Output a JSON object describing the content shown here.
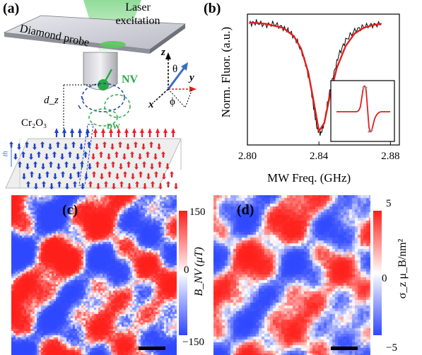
{
  "figure": {
    "panels": {
      "a": {
        "label": "(a)",
        "laser": "Laser\nexcitation",
        "probe": "Diamond probe",
        "nv": "NV",
        "dw": "DW",
        "material": "Cr₂O₃",
        "dz": "d_z",
        "th": "th",
        "axes": {
          "x": "x",
          "y": "y",
          "z": "z",
          "theta": "θ",
          "phi": "ϕ"
        },
        "colors": {
          "up": "#e8222a",
          "down": "#2040c8",
          "nv": "#2aa848",
          "axes": "#3a6fbf"
        }
      },
      "b": {
        "label": "(b)",
        "ylabel": "Norm. Fluor. (a.u.)",
        "xlabel": "MW Freq. (GHz)"
      },
      "c": {
        "label": "(c)",
        "colorbar_label": "B_NV (μT)",
        "colorbar_ticks": [
          "150",
          "0",
          "−150"
        ],
        "colorbar_range": [
          -150,
          150
        ]
      },
      "d": {
        "label": "(d)",
        "colorbar_label": "σ_z μ_B/nm²",
        "colorbar_ticks": [
          "5",
          "0",
          "−5"
        ],
        "colorbar_range": [
          -5,
          5
        ]
      }
    }
  },
  "chart_data": {
    "type": "line",
    "title": "",
    "xlabel": "MW Freq. (GHz)",
    "ylabel": "Norm. Fluor. (a.u.)",
    "xlim": [
      2.8,
      2.885
    ],
    "xticks": [
      "2.80",
      "2.84",
      "2.88"
    ],
    "series": [
      {
        "role": "data",
        "color": "#000000",
        "x": [
          2.801,
          2.805,
          2.81,
          2.815,
          2.82,
          2.824,
          2.828,
          2.832,
          2.835,
          2.837,
          2.839,
          2.841,
          2.843,
          2.845,
          2.848,
          2.851,
          2.855,
          2.86,
          2.865,
          2.87,
          2.875
        ],
        "y": [
          0.98,
          0.99,
          0.97,
          0.98,
          0.95,
          0.92,
          0.85,
          0.72,
          0.55,
          0.38,
          0.22,
          0.18,
          0.26,
          0.42,
          0.6,
          0.75,
          0.86,
          0.93,
          0.96,
          0.97,
          0.98
        ]
      },
      {
        "role": "fit",
        "color": "#e02020",
        "x": [
          2.801,
          2.81,
          2.82,
          2.826,
          2.83,
          2.834,
          2.837,
          2.84,
          2.843,
          2.846,
          2.85,
          2.855,
          2.86,
          2.865,
          2.87,
          2.875
        ],
        "y": [
          0.99,
          0.98,
          0.95,
          0.89,
          0.8,
          0.63,
          0.42,
          0.2,
          0.26,
          0.45,
          0.66,
          0.82,
          0.91,
          0.95,
          0.97,
          0.98
        ]
      }
    ]
  }
}
